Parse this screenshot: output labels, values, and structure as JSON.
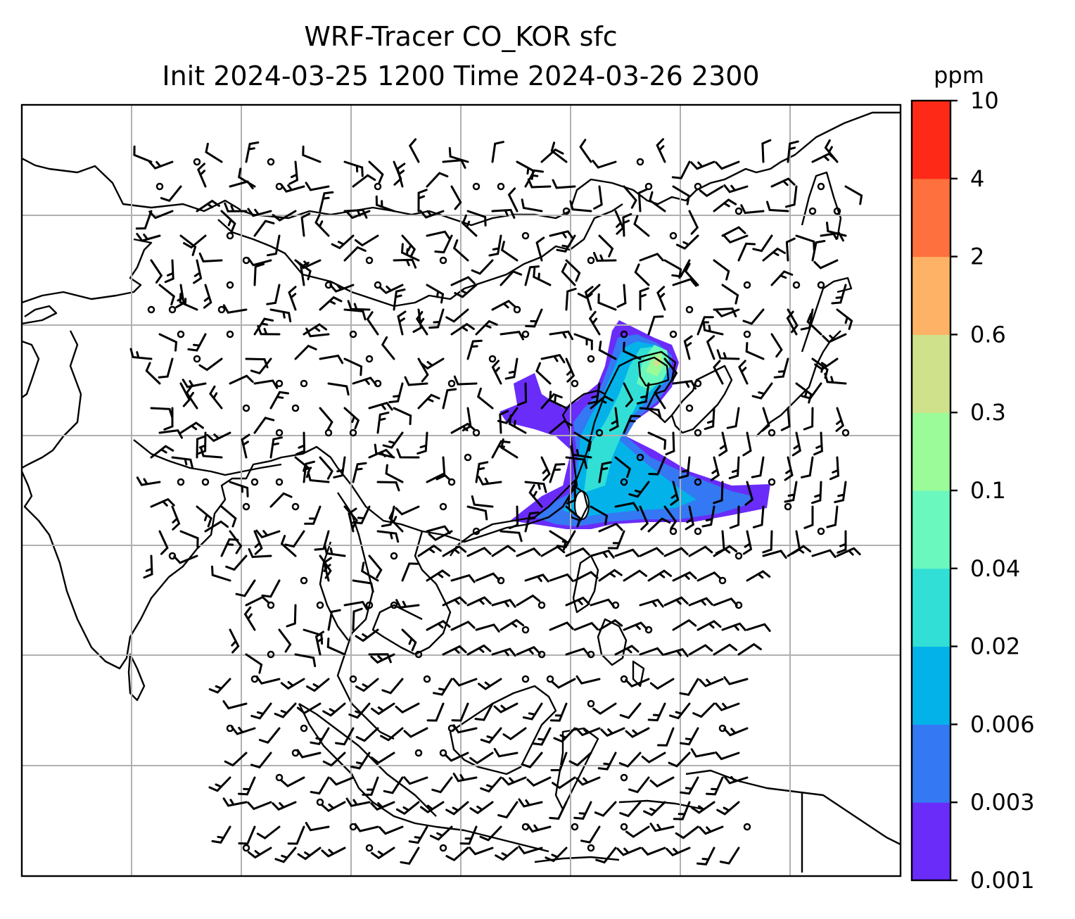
{
  "title": {
    "line1": "WRF-Tracer CO_KOR sfc",
    "line2": "Init 2024-03-25 1200 Time 2024-03-26 2300"
  },
  "colorbar": {
    "unit": "ppm",
    "levels": [
      "0.001",
      "0.003",
      "0.006",
      "0.02",
      "0.04",
      "0.1",
      "0.3",
      "0.6",
      "2",
      "4",
      "10"
    ],
    "colors": [
      "#6a2cf9",
      "#3478f3",
      "#04b2ea",
      "#32dfd7",
      "#6af8bf",
      "#9afb98",
      "#cfe18a",
      "#fdb265",
      "#fe703d",
      "#fe2a17"
    ]
  },
  "map": {
    "gridline_color": "#b0b0b0",
    "coastline_color": "#000000",
    "features": [
      "coastlines",
      "country-borders",
      "lat-lon-gridlines",
      "wind-barbs",
      "tracer-plume"
    ]
  }
}
